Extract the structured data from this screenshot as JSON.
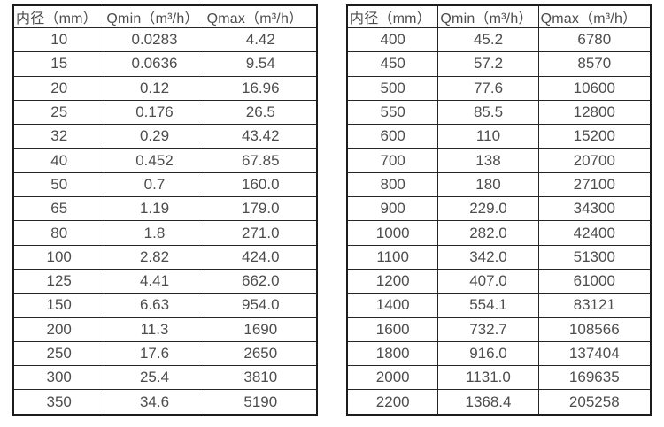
{
  "table_left": {
    "headers": [
      "内径（mm）",
      "Qmin（m³/h）",
      "Qmax（m³/h）"
    ],
    "rows": [
      [
        "10",
        "0.0283",
        "4.42"
      ],
      [
        "15",
        "0.0636",
        "9.54"
      ],
      [
        "20",
        "0.12",
        "16.96"
      ],
      [
        "25",
        "0.176",
        "26.5"
      ],
      [
        "32",
        "0.29",
        "43.42"
      ],
      [
        "40",
        "0.452",
        "67.85"
      ],
      [
        "50",
        "0.7",
        "160.0"
      ],
      [
        "65",
        "1.19",
        "179.0"
      ],
      [
        "80",
        "1.8",
        "271.0"
      ],
      [
        "100",
        "2.82",
        "424.0"
      ],
      [
        "125",
        "4.41",
        "662.0"
      ],
      [
        "150",
        "6.63",
        "954.0"
      ],
      [
        "200",
        "11.3",
        "1690"
      ],
      [
        "250",
        "17.6",
        "2650"
      ],
      [
        "300",
        "25.4",
        "3810"
      ],
      [
        "350",
        "34.6",
        "5190"
      ]
    ]
  },
  "table_right": {
    "headers": [
      "内径（mm）",
      "Qmin（m³/h）",
      "Qmax（m³/h）"
    ],
    "rows": [
      [
        "400",
        "45.2",
        "6780"
      ],
      [
        "450",
        "57.2",
        "8570"
      ],
      [
        "500",
        "77.6",
        "10600"
      ],
      [
        "550",
        "85.5",
        "12800"
      ],
      [
        "600",
        "110",
        "15200"
      ],
      [
        "700",
        "138",
        "20700"
      ],
      [
        "800",
        "180",
        "27100"
      ],
      [
        "900",
        "229.0",
        "34300"
      ],
      [
        "1000",
        "282.0",
        "42400"
      ],
      [
        "1100",
        "342.0",
        "51300"
      ],
      [
        "1200",
        "407.0",
        "61000"
      ],
      [
        "1400",
        "554.1",
        "83121"
      ],
      [
        "1600",
        "732.7",
        "108566"
      ],
      [
        "1800",
        "916.0",
        "137404"
      ],
      [
        "2000",
        "1131.0",
        "169635"
      ],
      [
        "2200",
        "1368.4",
        "205258"
      ]
    ]
  }
}
